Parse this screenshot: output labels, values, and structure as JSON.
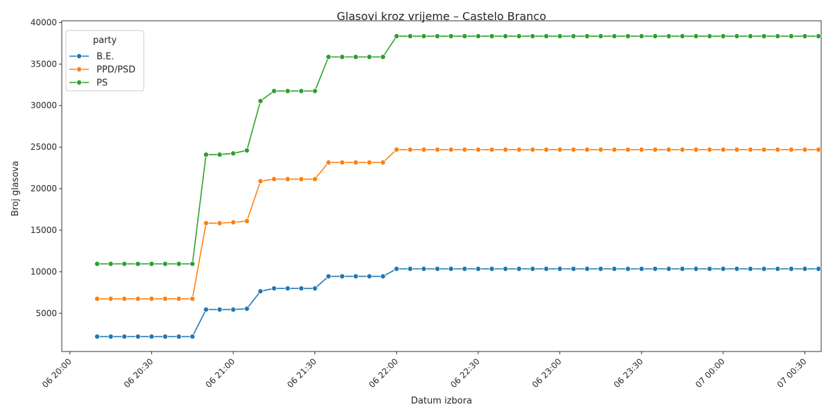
{
  "chart_data": {
    "type": "line",
    "title": "Glasovi kroz vrijeme – Castelo Branco",
    "xlabel": "Datum izbora",
    "ylabel": "Broj glasova",
    "x_ticks": [
      "06 20:00",
      "06 20:30",
      "06 21:00",
      "06 21:30",
      "06 22:00",
      "06 22:30",
      "06 23:00",
      "06 23:30",
      "07 00:00",
      "07 00:30"
    ],
    "x_tick_minutes": [
      0,
      30,
      60,
      90,
      120,
      150,
      180,
      210,
      240,
      270
    ],
    "xlim": [
      -3,
      276
    ],
    "y_ticks": [
      5000,
      10000,
      15000,
      20000,
      25000,
      30000,
      35000,
      40000
    ],
    "ylim": [
      400,
      40200
    ],
    "grid": false,
    "legend": {
      "title": "party",
      "position": "top-left"
    },
    "x": [
      "06 20:10",
      "06 20:15",
      "06 20:20",
      "06 20:25",
      "06 20:30",
      "06 20:35",
      "06 20:40",
      "06 20:45",
      "06 20:50",
      "06 20:55",
      "06 21:00",
      "06 21:05",
      "06 21:10",
      "06 21:15",
      "06 21:20",
      "06 21:25",
      "06 21:30",
      "06 21:35",
      "06 21:40",
      "06 21:45",
      "06 21:50",
      "06 21:55",
      "06 22:00",
      "06 22:05",
      "06 22:10",
      "06 22:15",
      "06 22:20",
      "06 22:25",
      "06 22:30",
      "06 22:35",
      "06 22:40",
      "06 22:45",
      "06 22:50",
      "06 22:55",
      "06 23:00",
      "06 23:05",
      "06 23:10",
      "06 23:15",
      "06 23:20",
      "06 23:25",
      "06 23:30",
      "06 23:35",
      "06 23:40",
      "06 23:45",
      "06 23:50",
      "06 23:55",
      "07 00:00",
      "07 00:05",
      "07 00:10",
      "07 00:15",
      "07 00:20",
      "07 00:25",
      "07 00:30",
      "07 00:35"
    ],
    "series": [
      {
        "name": "B.E.",
        "color": "#1f77b4",
        "values": [
          2200,
          2200,
          2200,
          2200,
          2200,
          2200,
          2200,
          2200,
          5450,
          5450,
          5450,
          5550,
          7650,
          8000,
          8000,
          8000,
          8000,
          9450,
          9450,
          9450,
          9450,
          9450,
          10350,
          10350,
          10350,
          10350,
          10350,
          10350,
          10350,
          10350,
          10350,
          10350,
          10350,
          10350,
          10350,
          10350,
          10350,
          10350,
          10350,
          10350,
          10350,
          10350,
          10350,
          10350,
          10350,
          10350,
          10350,
          10350,
          10350,
          10350,
          10350,
          10350,
          10350,
          10350
        ]
      },
      {
        "name": "PPD/PSD",
        "color": "#ff7f0e",
        "values": [
          6750,
          6750,
          6750,
          6750,
          6750,
          6750,
          6750,
          6750,
          15850,
          15850,
          15950,
          16100,
          20900,
          21150,
          21150,
          21150,
          21150,
          23150,
          23150,
          23150,
          23150,
          23150,
          24700,
          24700,
          24700,
          24700,
          24700,
          24700,
          24700,
          24700,
          24700,
          24700,
          24700,
          24700,
          24700,
          24700,
          24700,
          24700,
          24700,
          24700,
          24700,
          24700,
          24700,
          24700,
          24700,
          24700,
          24700,
          24700,
          24700,
          24700,
          24700,
          24700,
          24700,
          24700
        ]
      },
      {
        "name": "PS",
        "color": "#2ca02c",
        "values": [
          10950,
          10950,
          10950,
          10950,
          10950,
          10950,
          10950,
          10950,
          24100,
          24100,
          24250,
          24600,
          30550,
          31750,
          31750,
          31750,
          31750,
          35850,
          35850,
          35850,
          35850,
          35850,
          38350,
          38350,
          38350,
          38350,
          38350,
          38350,
          38350,
          38350,
          38350,
          38350,
          38350,
          38350,
          38350,
          38350,
          38350,
          38350,
          38350,
          38350,
          38350,
          38350,
          38350,
          38350,
          38350,
          38350,
          38350,
          38350,
          38350,
          38350,
          38350,
          38350,
          38350,
          38350
        ]
      }
    ]
  }
}
